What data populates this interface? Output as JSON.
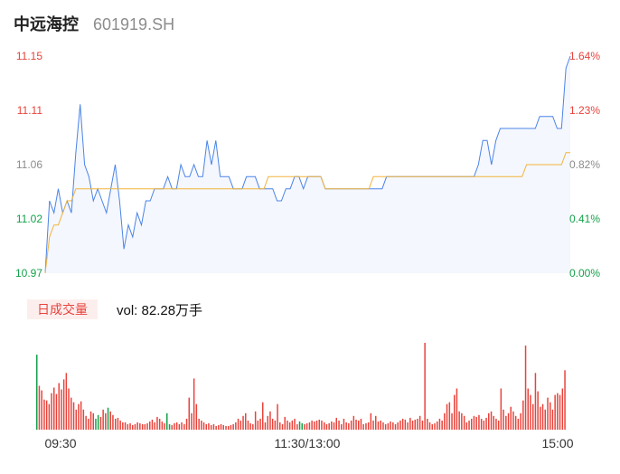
{
  "stock": {
    "name": "中远海控",
    "code": "601919.SH"
  },
  "volume_label": "日成交量",
  "volume_text": "vol: 82.28万手",
  "colors": {
    "up": "#e8433b",
    "down": "#14a14a",
    "neutral": "#8c8c8c",
    "price_line": "#4b84e8",
    "avg_line": "#f2b33d"
  },
  "chart_data": [
    {
      "type": "line",
      "ylim": [
        10.97,
        11.15
      ],
      "y_tick_labels": [
        "11.15",
        "11.11",
        "11.06",
        "11.02",
        "10.97"
      ],
      "y_tick_colors": [
        "up",
        "up",
        "neutral",
        "down",
        "down"
      ],
      "pct_tick_labels": [
        "1.64%",
        "1.23%",
        "0.82%",
        "0.41%",
        "0.00%"
      ],
      "x": [
        0,
        2,
        4,
        6,
        8,
        10,
        12,
        14,
        16,
        18,
        20,
        22,
        24,
        26,
        28,
        30,
        32,
        34,
        36,
        38,
        40,
        42,
        44,
        46,
        48,
        50,
        52,
        54,
        56,
        58,
        60,
        62,
        64,
        66,
        68,
        70,
        72,
        74,
        76,
        78,
        80,
        82,
        84,
        86,
        88,
        90,
        92,
        94,
        96,
        98,
        100,
        102,
        104,
        106,
        108,
        110,
        112,
        114,
        116,
        118,
        120,
        122,
        124,
        126,
        128,
        130,
        132,
        134,
        136,
        138,
        140,
        142,
        144,
        146,
        148,
        150,
        152,
        154,
        156,
        158,
        160,
        162,
        164,
        166,
        168,
        170,
        172,
        174,
        176,
        178,
        180,
        182,
        184,
        186,
        188,
        190,
        192,
        194,
        196,
        198,
        200,
        202,
        204,
        206,
        208,
        210,
        212,
        214,
        216,
        218,
        220,
        222,
        224,
        226,
        228,
        230,
        232,
        234,
        236,
        238,
        240
      ],
      "series": [
        {
          "values": [
            10.97,
            11.03,
            11.02,
            11.04,
            11.02,
            11.03,
            11.02,
            11.07,
            11.11,
            11.06,
            11.05,
            11.03,
            11.04,
            11.03,
            11.02,
            11.04,
            11.06,
            11.03,
            10.99,
            11.01,
            11.0,
            11.02,
            11.01,
            11.03,
            11.03,
            11.04,
            11.04,
            11.04,
            11.05,
            11.04,
            11.04,
            11.06,
            11.05,
            11.05,
            11.06,
            11.05,
            11.05,
            11.08,
            11.06,
            11.08,
            11.05,
            11.05,
            11.05,
            11.04,
            11.04,
            11.04,
            11.05,
            11.05,
            11.05,
            11.04,
            11.04,
            11.04,
            11.04,
            11.03,
            11.03,
            11.04,
            11.04,
            11.05,
            11.05,
            11.04,
            11.05,
            11.05,
            11.05,
            11.05,
            11.04,
            11.04,
            11.04,
            11.04,
            11.04,
            11.04,
            11.04,
            11.04,
            11.04,
            11.04,
            11.04,
            11.04,
            11.04,
            11.04,
            11.05,
            11.05,
            11.05,
            11.05,
            11.05,
            11.05,
            11.05,
            11.05,
            11.05,
            11.05,
            11.05,
            11.05,
            11.05,
            11.05,
            11.05,
            11.05,
            11.05,
            11.05,
            11.05,
            11.05,
            11.05,
            11.06,
            11.08,
            11.08,
            11.06,
            11.08,
            11.09,
            11.09,
            11.09,
            11.09,
            11.09,
            11.09,
            11.09,
            11.09,
            11.09,
            11.1,
            11.1,
            11.1,
            11.1,
            11.09,
            11.09,
            11.14,
            11.15
          ],
          "color": "price_line"
        },
        {
          "values": [
            10.97,
            11.0,
            11.01,
            11.01,
            11.02,
            11.03,
            11.03,
            11.04,
            11.04,
            11.04,
            11.04,
            11.04,
            11.04,
            11.04,
            11.04,
            11.04,
            11.04,
            11.04,
            11.04,
            11.04,
            11.04,
            11.04,
            11.04,
            11.04,
            11.04,
            11.04,
            11.04,
            11.04,
            11.04,
            11.04,
            11.04,
            11.04,
            11.04,
            11.04,
            11.04,
            11.04,
            11.04,
            11.04,
            11.04,
            11.04,
            11.04,
            11.04,
            11.04,
            11.04,
            11.04,
            11.04,
            11.04,
            11.04,
            11.04,
            11.04,
            11.04,
            11.05,
            11.05,
            11.05,
            11.05,
            11.05,
            11.05,
            11.05,
            11.05,
            11.05,
            11.05,
            11.05,
            11.05,
            11.05,
            11.04,
            11.04,
            11.04,
            11.04,
            11.04,
            11.04,
            11.04,
            11.04,
            11.04,
            11.04,
            11.04,
            11.05,
            11.05,
            11.05,
            11.05,
            11.05,
            11.05,
            11.05,
            11.05,
            11.05,
            11.05,
            11.05,
            11.05,
            11.05,
            11.05,
            11.05,
            11.05,
            11.05,
            11.05,
            11.05,
            11.05,
            11.05,
            11.05,
            11.05,
            11.05,
            11.05,
            11.05,
            11.05,
            11.05,
            11.05,
            11.05,
            11.05,
            11.05,
            11.05,
            11.05,
            11.05,
            11.06,
            11.06,
            11.06,
            11.06,
            11.06,
            11.06,
            11.06,
            11.06,
            11.06,
            11.07,
            11.07
          ],
          "color": "avg_line"
        }
      ]
    },
    {
      "type": "bar",
      "x_tick_labels": [
        "09:30",
        "11:30/13:00",
        "15:00"
      ],
      "volumes": [
        0.82,
        0.48,
        0.43,
        0.33,
        0.32,
        0.28,
        0.4,
        0.46,
        0.39,
        0.51,
        0.44,
        0.55,
        0.62,
        0.45,
        0.35,
        0.3,
        0.22,
        0.28,
        0.31,
        0.22,
        0.15,
        0.12,
        0.2,
        0.18,
        0.12,
        0.16,
        0.14,
        0.22,
        0.18,
        0.24,
        0.2,
        0.16,
        0.12,
        0.13,
        0.1,
        0.08,
        0.08,
        0.06,
        0.07,
        0.05,
        0.06,
        0.08,
        0.07,
        0.06,
        0.06,
        0.07,
        0.09,
        0.11,
        0.08,
        0.14,
        0.12,
        0.09,
        0.07,
        0.18,
        0.06,
        0.05,
        0.07,
        0.08,
        0.06,
        0.08,
        0.06,
        0.12,
        0.35,
        0.18,
        0.56,
        0.28,
        0.12,
        0.1,
        0.08,
        0.06,
        0.07,
        0.05,
        0.06,
        0.04,
        0.05,
        0.06,
        0.05,
        0.04,
        0.04,
        0.05,
        0.06,
        0.08,
        0.12,
        0.1,
        0.15,
        0.18,
        0.1,
        0.07,
        0.06,
        0.2,
        0.1,
        0.12,
        0.3,
        0.08,
        0.15,
        0.2,
        0.12,
        0.1,
        0.28,
        0.08,
        0.06,
        0.14,
        0.1,
        0.08,
        0.1,
        0.12,
        0.06,
        0.09,
        0.07,
        0.06,
        0.07,
        0.08,
        0.1,
        0.09,
        0.1,
        0.11,
        0.1,
        0.08,
        0.06,
        0.07,
        0.09,
        0.08,
        0.13,
        0.1,
        0.06,
        0.12,
        0.08,
        0.07,
        0.1,
        0.15,
        0.11,
        0.1,
        0.12,
        0.06,
        0.07,
        0.08,
        0.18,
        0.1,
        0.15,
        0.09,
        0.1,
        0.08,
        0.06,
        0.07,
        0.09,
        0.08,
        0.06,
        0.08,
        0.1,
        0.12,
        0.11,
        0.08,
        0.13,
        0.1,
        0.11,
        0.12,
        0.15,
        0.1,
        0.95,
        0.12,
        0.08,
        0.06,
        0.07,
        0.09,
        0.12,
        0.1,
        0.18,
        0.28,
        0.3,
        0.18,
        0.38,
        0.45,
        0.2,
        0.18,
        0.15,
        0.08,
        0.1,
        0.12,
        0.15,
        0.14,
        0.16,
        0.12,
        0.1,
        0.13,
        0.18,
        0.2,
        0.15,
        0.12,
        0.1,
        0.45,
        0.22,
        0.15,
        0.18,
        0.25,
        0.2,
        0.15,
        0.12,
        0.18,
        0.32,
        0.92,
        0.45,
        0.38,
        0.28,
        0.62,
        0.42,
        0.25,
        0.28,
        0.22,
        0.35,
        0.3,
        0.22,
        0.38,
        0.4,
        0.38,
        0.45,
        0.65
      ],
      "volume_colors": "dmmmmmmmmmmmmmmmmmmmmmmmdduuuduuuuuuuuuuuuuuuuuuuuuuudduuuuuuuuuuuuuuuuuuuuuuuuuuuuuuuuuuuuuuuuuuuuuuuuuuuudduuuuuuuuuuuuuuuuuuuuuuuuuuuuuuuuuuuuuuuuuuuuuuuuuuuuuuuuuuuuuuuuuuuuuuuuuuuuuuuuuuuuuuuuuuuuuuuuuuuuuuuuuuuuu"
    }
  ]
}
